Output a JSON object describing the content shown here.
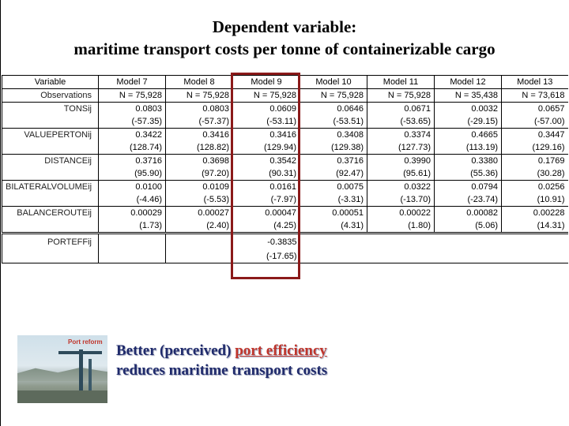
{
  "title": {
    "line1": "Dependent variable:",
    "line2": "maritime transport costs per tonne of containerizable cargo"
  },
  "table": {
    "columns": [
      "Variable",
      "Model 7",
      "Model 8",
      "Model 9",
      "Model 10",
      "Model 11",
      "Model 12",
      "Model 13"
    ],
    "observations_label": "Observations",
    "observations": [
      "N = 75,928",
      "N = 75,928",
      "N = 75,928",
      "N = 75,928",
      "N = 75,928",
      "N = 35,438",
      "N = 73,618"
    ],
    "variables": [
      {
        "name": "TONSij",
        "coef": [
          "0.0803",
          "0.0803",
          "0.0609",
          "0.0646",
          "0.0671",
          "0.0032",
          "0.0657"
        ],
        "t": [
          "(-57.35)",
          "(-57.37)",
          "(-53.11)",
          "(-53.51)",
          "(-53.65)",
          "(-29.15)",
          "(-57.00)"
        ]
      },
      {
        "name": "VALUEPERTONij",
        "coef": [
          "0.3422",
          "0.3416",
          "0.3416",
          "0.3408",
          "0.3374",
          "0.4665",
          "0.3447"
        ],
        "t": [
          "(128.74)",
          "(128.82)",
          "(129.94)",
          "(129.38)",
          "(127.73)",
          "(113.19)",
          "(129.16)"
        ]
      },
      {
        "name": "DISTANCEij",
        "coef": [
          "0.3716",
          "0.3698",
          "0.3542",
          "0.3716",
          "0.3990",
          "0.3380",
          "0.1769"
        ],
        "t": [
          "(95.90)",
          "(97.20)",
          "(90.31)",
          "(92.47)",
          "(95.61)",
          "(55.36)",
          "(30.28)"
        ]
      },
      {
        "name": "BILATERALVOLUMEij",
        "coef": [
          "0.0100",
          "0.0109",
          "0.0161",
          "0.0075",
          "0.0322",
          "0.0794",
          "0.0256"
        ],
        "t": [
          "(-4.46)",
          "(-5.53)",
          "(-7.97)",
          "(-3.31)",
          "(-13.70)",
          "(-23.74)",
          "(10.91)"
        ]
      },
      {
        "name": "BALANCEROUTEij",
        "coef": [
          "0.00029",
          "0.00027",
          "0.00047",
          "0.00051",
          "0.00022",
          "0.00082",
          "0.00228"
        ],
        "t": [
          "(1.73)",
          "(2.40)",
          "(4.25)",
          "(4.31)",
          "(1.80)",
          "(5.06)",
          "(14.31)"
        ]
      }
    ],
    "extra": {
      "name": "PORTEFFij",
      "coef": "-0.3835",
      "t": "(-17.65)"
    }
  },
  "photo": {
    "label": "Port reform"
  },
  "message": {
    "part1": "Better (perceived) ",
    "highlight": "port efficiency",
    "line2": "reduces maritime transport costs"
  },
  "colors": {
    "highlight_box": "#8b1a1a",
    "message_text": "#1f2a6b",
    "accent": "#c0352b"
  }
}
